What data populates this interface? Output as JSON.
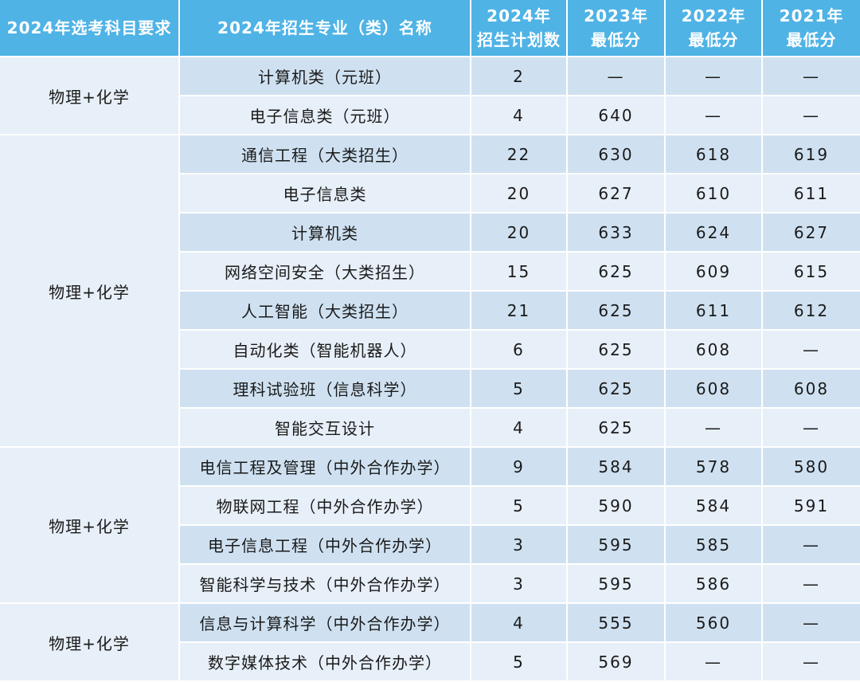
{
  "header": {
    "col0": "2024年选考科目要求",
    "col1": "2024年招生专业（类）名称",
    "col2_l1": "2024年",
    "col2_l2": "招生计划数",
    "col3_l1": "2023年",
    "col3_l2": "最低分",
    "col4_l1": "2022年",
    "col4_l2": "最低分",
    "col5_l1": "2021年",
    "col5_l2": "最低分"
  },
  "groups": [
    {
      "subject": "物理+化学",
      "rows": [
        {
          "major": "计算机类（元班）",
          "plan": "2",
          "s2023": "—",
          "s2022": "—",
          "s2021": "—"
        },
        {
          "major": "电子信息类（元班）",
          "plan": "4",
          "s2023": "640",
          "s2022": "—",
          "s2021": "—"
        }
      ]
    },
    {
      "subject": "物理+化学",
      "rows": [
        {
          "major": "通信工程（大类招生）",
          "plan": "22",
          "s2023": "630",
          "s2022": "618",
          "s2021": "619"
        },
        {
          "major": "电子信息类",
          "plan": "20",
          "s2023": "627",
          "s2022": "610",
          "s2021": "611"
        },
        {
          "major": "计算机类",
          "plan": "20",
          "s2023": "633",
          "s2022": "624",
          "s2021": "627"
        },
        {
          "major": "网络空间安全（大类招生）",
          "plan": "15",
          "s2023": "625",
          "s2022": "609",
          "s2021": "615"
        },
        {
          "major": "人工智能（大类招生）",
          "plan": "21",
          "s2023": "625",
          "s2022": "611",
          "s2021": "612"
        },
        {
          "major": "自动化类（智能机器人）",
          "plan": "6",
          "s2023": "625",
          "s2022": "608",
          "s2021": "—"
        },
        {
          "major": "理科试验班（信息科学）",
          "plan": "5",
          "s2023": "625",
          "s2022": "608",
          "s2021": "608"
        },
        {
          "major": "智能交互设计",
          "plan": "4",
          "s2023": "625",
          "s2022": "—",
          "s2021": "—"
        }
      ]
    },
    {
      "subject": "物理+化学",
      "rows": [
        {
          "major": "电信工程及管理（中外合作办学）",
          "plan": "9",
          "s2023": "584",
          "s2022": "578",
          "s2021": "580"
        },
        {
          "major": "物联网工程（中外合作办学）",
          "plan": "5",
          "s2023": "590",
          "s2022": "584",
          "s2021": "591"
        },
        {
          "major": "电子信息工程（中外合作办学）",
          "plan": "3",
          "s2023": "595",
          "s2022": "585",
          "s2021": "—"
        },
        {
          "major": "智能科学与技术（中外合作办学）",
          "plan": "3",
          "s2023": "595",
          "s2022": "586",
          "s2021": "—"
        }
      ]
    },
    {
      "subject": "物理+化学",
      "rows": [
        {
          "major": "信息与计算科学（中外合作办学）",
          "plan": "4",
          "s2023": "555",
          "s2022": "560",
          "s2021": "—"
        },
        {
          "major": "数字媒体技术（中外合作办学）",
          "plan": "5",
          "s2023": "569",
          "s2022": "—",
          "s2021": "—"
        }
      ]
    }
  ]
}
